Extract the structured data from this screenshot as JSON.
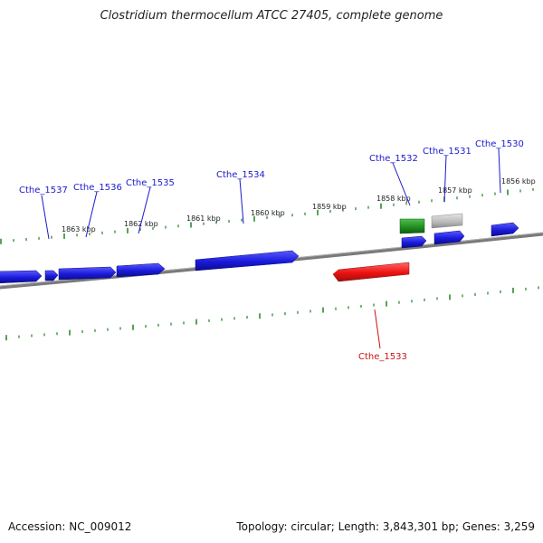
{
  "title": "Clostridium thermocellum ATCC 27405, complete genome",
  "footer": {
    "accession": "Accession: NC_009012",
    "summary": "Topology: circular; Length: 3,843,301 bp; Genes: 3,259"
  },
  "colors": {
    "forward_gene": "#1a1adb",
    "reverse_gene": "#ee1111",
    "rna_gene": "#1f8a1f",
    "pseudo_gene": "#b8b8b8",
    "ticks": "#2e8b2e",
    "backbone": "#808080",
    "forward_label": "#1a1acc",
    "reverse_label": "#cc1111"
  },
  "tick_labels": [
    "1863 kbp",
    "1862 kbp",
    "1861 kbp",
    "1860 kbp",
    "1859 kbp",
    "1858 kbp",
    "1857 kbp",
    "1856 kbp"
  ],
  "genes": [
    {
      "label": "Cthe_1537",
      "strand": "forward"
    },
    {
      "label": "Cthe_1536",
      "strand": "forward"
    },
    {
      "label": "Cthe_1535",
      "strand": "forward"
    },
    {
      "label": "Cthe_1534",
      "strand": "forward"
    },
    {
      "label": "Cthe_1532",
      "strand": "forward"
    },
    {
      "label": "Cthe_1531",
      "strand": "forward"
    },
    {
      "label": "Cthe_1530",
      "strand": "forward"
    },
    {
      "label": "Cthe_1533",
      "strand": "reverse"
    }
  ]
}
